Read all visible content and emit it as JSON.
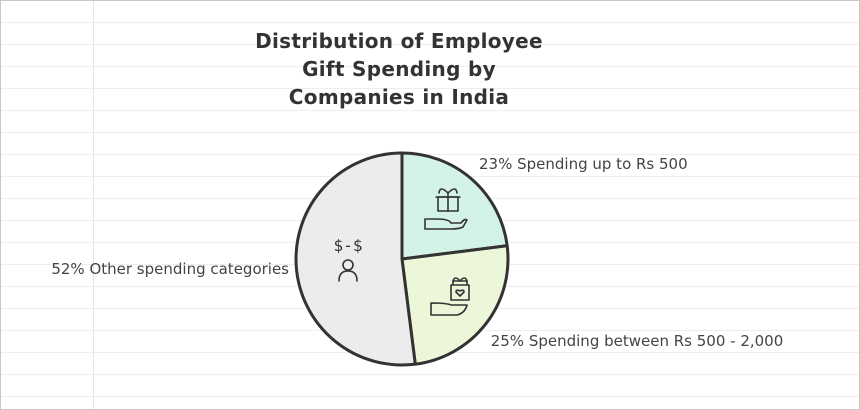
{
  "chart_data": {
    "type": "pie",
    "title": "Distribution of Employee Gift Spending by Companies in India",
    "categories": [
      "Spending up to Rs 500",
      "Spending between Rs 500 - 2,000",
      "Other spending categories"
    ],
    "values": [
      23,
      25,
      52
    ],
    "value_labels": [
      "23%",
      "25%",
      "52%"
    ],
    "colors": [
      "#d4f3e7",
      "#ecf6d8",
      "#ececec"
    ]
  }
}
